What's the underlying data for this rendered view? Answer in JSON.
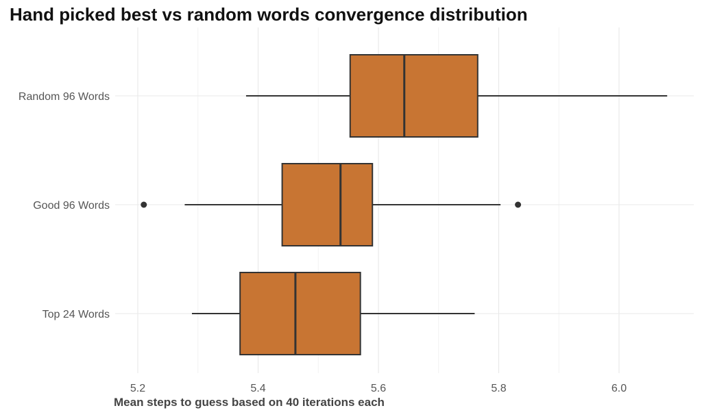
{
  "chart_data": {
    "type": "boxplot",
    "orientation": "horizontal",
    "title": "Hand picked best vs random words convergence distribution",
    "xlabel": "Mean steps to guess based on 40 iterations each",
    "ylabel": "",
    "xlim": [
      5.15,
      6.12
    ],
    "x_ticks": [
      5.2,
      5.4,
      5.6,
      5.8,
      6.0
    ],
    "x_tick_labels": [
      "5.2",
      "5.4",
      "5.6",
      "5.8",
      "6.0"
    ],
    "grid": true,
    "fill_color": "#c87533",
    "edge_color": "#333333",
    "categories": [
      "Random 96 Words",
      "Good 96 Words",
      "Top 24 Words"
    ],
    "boxes": [
      {
        "category": "Random 96 Words",
        "whisker_low": 5.38,
        "q1": 5.553,
        "median": 5.643,
        "q3": 5.765,
        "whisker_high": 6.08,
        "outliers": []
      },
      {
        "category": "Good 96 Words",
        "whisker_low": 5.278,
        "q1": 5.44,
        "median": 5.537,
        "q3": 5.59,
        "whisker_high": 5.803,
        "outliers": [
          5.21,
          5.832
        ]
      },
      {
        "category": "Top 24 Words",
        "whisker_low": 5.29,
        "q1": 5.37,
        "median": 5.462,
        "q3": 5.57,
        "whisker_high": 5.76,
        "outliers": []
      }
    ]
  }
}
